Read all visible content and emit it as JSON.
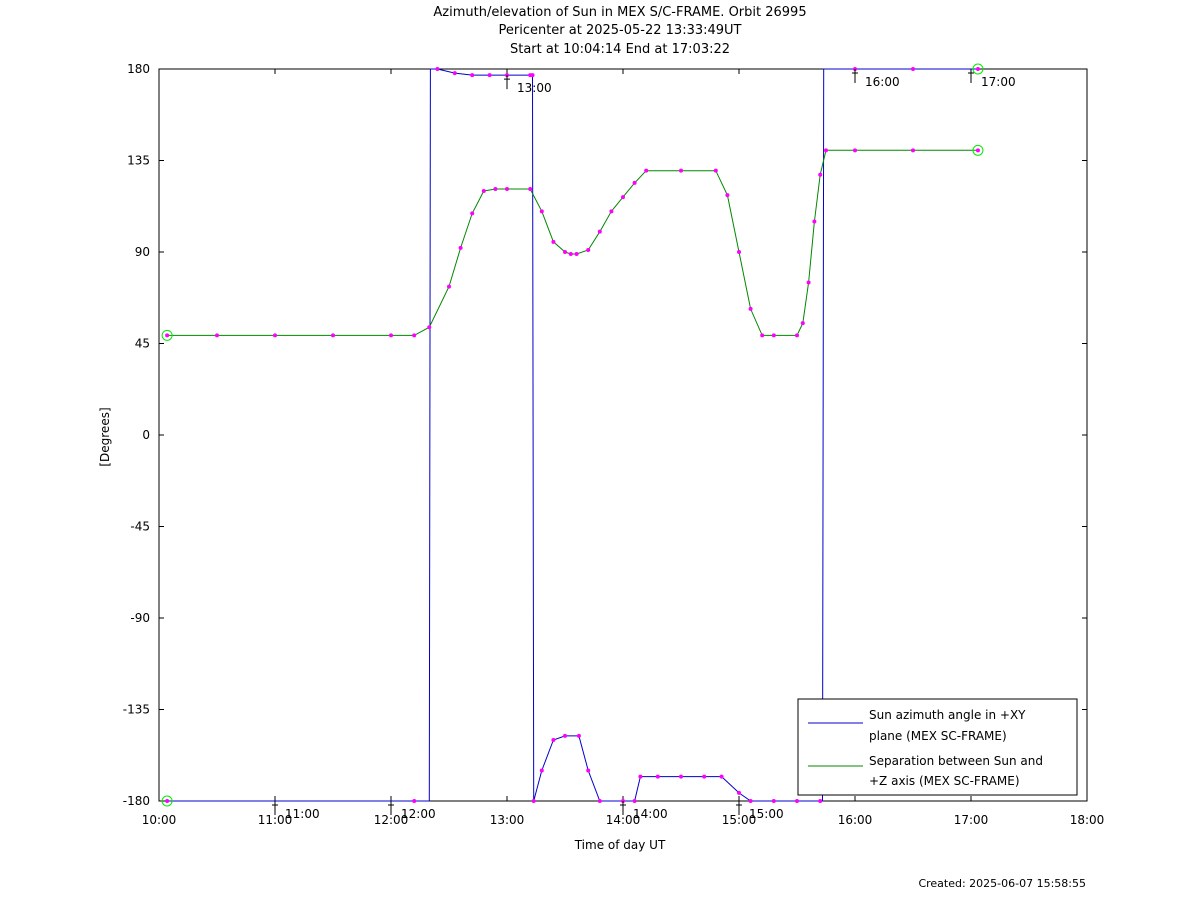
{
  "title": {
    "line1": "Azimuth/elevation of Sun in MEX S/C-FRAME.  Orbit 26995",
    "line2": "Pericenter at 2025-05-22 13:33:49UT",
    "line3": "Start at 10:04:14 End at 17:03:22"
  },
  "footer": {
    "created": "Created: 2025-06-07 15:58:55"
  },
  "chart_data": {
    "type": "line",
    "xlabel": "Time of day UT",
    "ylabel": "[Degrees]",
    "xlim": [
      10.0,
      18.0
    ],
    "ylim": [
      -180,
      180
    ],
    "x_ticks": [
      "10:00",
      "11:00",
      "12:00",
      "13:00",
      "14:00",
      "15:00",
      "16:00",
      "17:00",
      "18:00"
    ],
    "y_ticks": [
      "180",
      "135",
      "90",
      "45",
      "0",
      "-45",
      "-90",
      "-135",
      "-180"
    ],
    "grid": false,
    "legend_position": "bottom-right",
    "colors": {
      "azimuth": "#0000cc",
      "separation": "#008800",
      "markers": "#ff00ff",
      "endpoints": "#00ee00"
    },
    "series": [
      {
        "name": "Sun azimuth angle in +XY plane (MEX SC-FRAME)",
        "legend_lines": [
          "Sun azimuth angle in +XY",
          "plane (MEX SC-FRAME)"
        ],
        "color": "#0000cc",
        "x": [
          10.07,
          12.2,
          12.33,
          12.34,
          12.4,
          12.55,
          12.7,
          12.85,
          13.0,
          13.2,
          13.22,
          13.23,
          13.3,
          13.4,
          13.5,
          13.62,
          13.7,
          13.8,
          14.0,
          14.1,
          14.15,
          14.3,
          14.5,
          14.7,
          14.85,
          15.0,
          15.1,
          15.3,
          15.5,
          15.7,
          15.72,
          15.73,
          16.0,
          16.5,
          17.06
        ],
        "y": [
          -180,
          -180,
          -180,
          180,
          180,
          178,
          177,
          177,
          177,
          177,
          177,
          -180,
          -165,
          -150,
          -148,
          -148,
          -165,
          -180,
          -180,
          -180,
          -168,
          -168,
          -168,
          -168,
          -168,
          -176,
          -180,
          -180,
          -180,
          -180,
          -180,
          180,
          180,
          180,
          180
        ]
      },
      {
        "name": "Separation between Sun and +Z axis (MEX SC-FRAME)",
        "legend_lines": [
          "Separation between Sun and",
          "+Z axis (MEX SC-FRAME)"
        ],
        "color": "#008800",
        "x": [
          10.07,
          10.5,
          11.0,
          11.5,
          12.0,
          12.2,
          12.33,
          12.5,
          12.6,
          12.7,
          12.8,
          12.9,
          13.0,
          13.2,
          13.3,
          13.4,
          13.5,
          13.55,
          13.6,
          13.7,
          13.8,
          13.9,
          14.0,
          14.1,
          14.2,
          14.5,
          14.8,
          14.9,
          15.0,
          15.1,
          15.2,
          15.3,
          15.5,
          15.55,
          15.6,
          15.65,
          15.7,
          15.75,
          16.0,
          16.5,
          17.06
        ],
        "y": [
          49,
          49,
          49,
          49,
          49,
          49,
          53,
          73,
          92,
          109,
          120,
          121,
          121,
          121,
          110,
          95,
          90,
          89,
          89,
          91,
          100,
          110,
          117,
          124,
          130,
          130,
          130,
          118,
          90,
          62,
          49,
          49,
          49,
          55,
          75,
          105,
          128,
          140,
          140,
          140,
          140
        ]
      }
    ],
    "orbit_tick_labels": [
      {
        "label": "11:00",
        "x": 11.0,
        "y": -180
      },
      {
        "label": "12:00",
        "x": 12.0,
        "y": -180
      },
      {
        "label": "13:00",
        "x": 13.0,
        "y": 177
      },
      {
        "label": "14:00",
        "x": 14.0,
        "y": -180
      },
      {
        "label": "15:00",
        "x": 15.0,
        "y": -180
      },
      {
        "label": "16:00",
        "x": 16.0,
        "y": 180
      },
      {
        "label": "17:00",
        "x": 17.0,
        "y": 180
      }
    ]
  }
}
